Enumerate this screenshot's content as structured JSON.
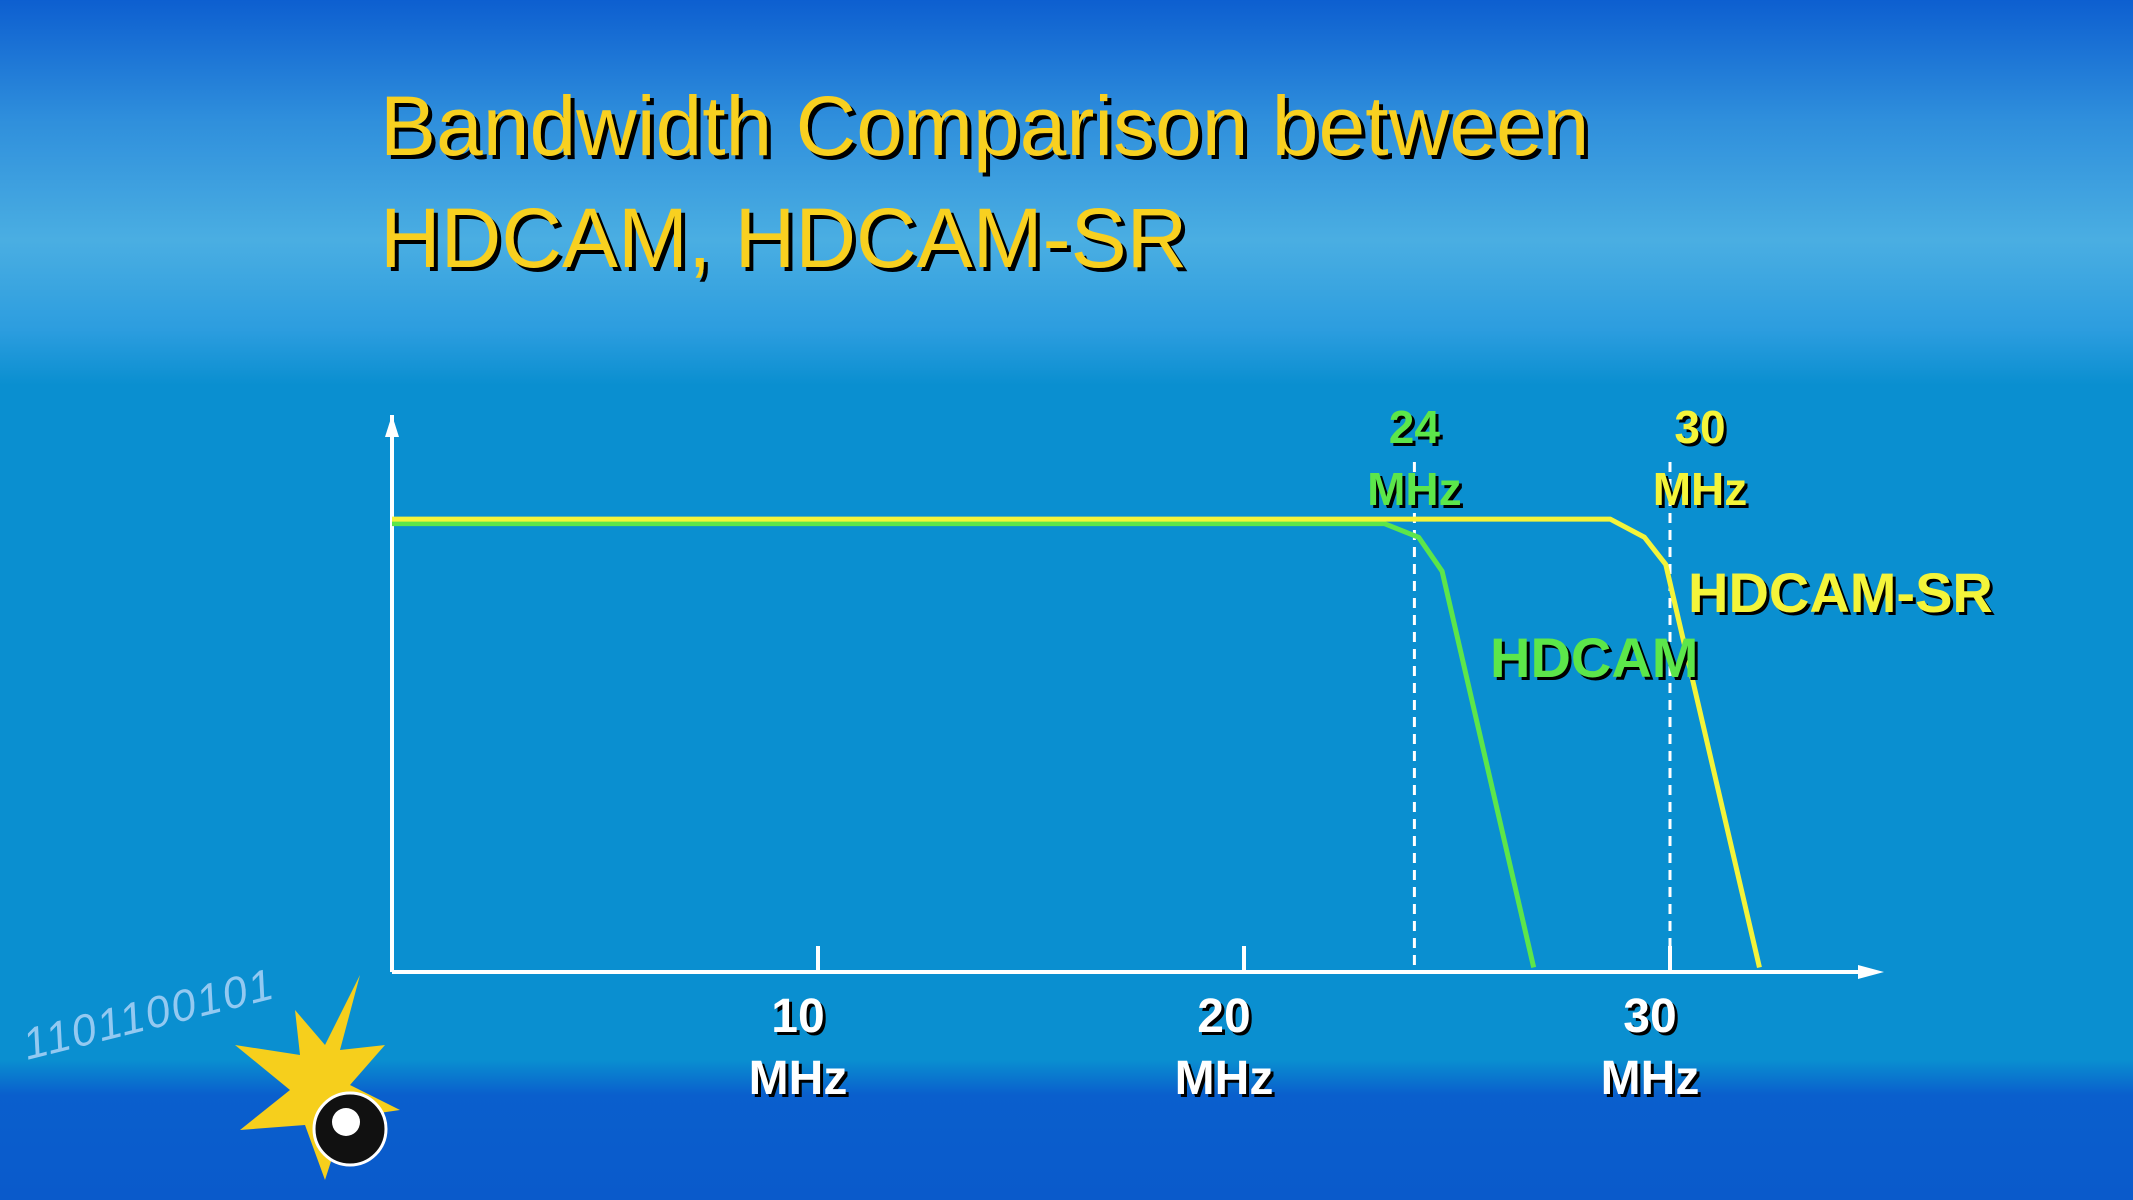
{
  "chart_data": {
    "type": "line",
    "title": "Bandwidth Comparison between HDCAM, HDCAM-SR",
    "xlim": [
      0,
      35
    ],
    "ylim": [
      0,
      1.23
    ],
    "xticks": [
      {
        "value": 10,
        "label": "10 MHz"
      },
      {
        "value": 20,
        "label": "20 MHz"
      },
      {
        "value": 30,
        "label": "30 MHz"
      }
    ],
    "series": [
      {
        "name": "HDCAM",
        "color": "#5ce64a",
        "x": [
          0,
          23.3,
          24.1,
          24.65,
          26.8
        ],
        "values": [
          0.99,
          0.99,
          0.96,
          0.885,
          0.01
        ]
      },
      {
        "name": "HDCAM-SR",
        "color": "#f4f43a",
        "x": [
          0,
          28.6,
          29.4,
          29.9,
          32.1
        ],
        "values": [
          1.0,
          1.0,
          0.96,
          0.9,
          0.01
        ]
      }
    ],
    "markers": [
      {
        "x": 24,
        "label": "24 MHz",
        "color": "#5ce64a"
      },
      {
        "x": 30,
        "label": "30 MHz",
        "color": "#f4f43a"
      }
    ],
    "decoration_text": "1101100101"
  }
}
